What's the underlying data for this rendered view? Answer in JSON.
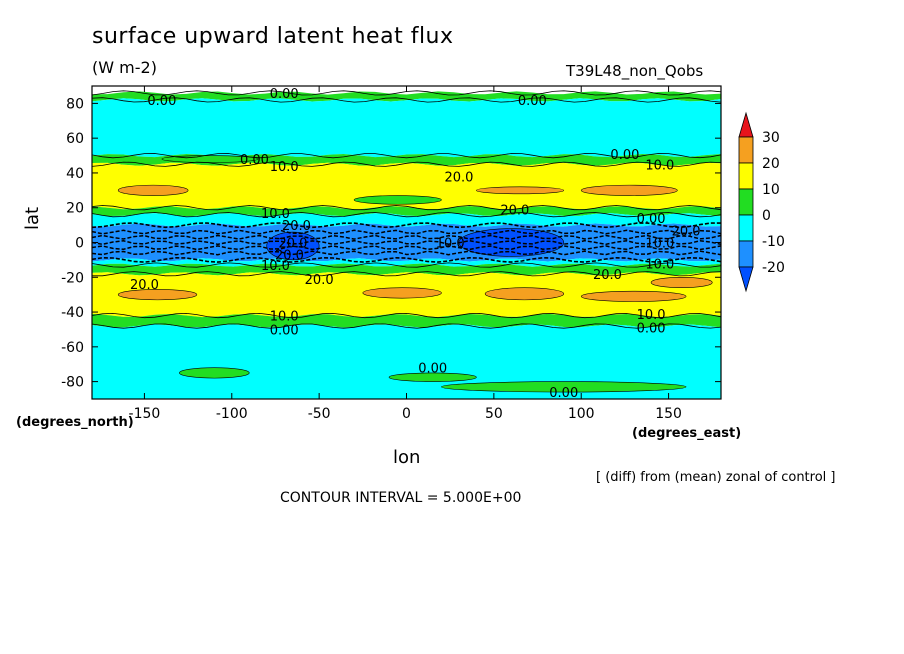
{
  "header": {
    "title": "surface upward latent heat flux",
    "units": "(W m-2)",
    "run_id": "T39L48_non_Qobs"
  },
  "footer": {
    "diff_note": "[ (diff) from (mean) zonal of control ]",
    "contour_interval": "CONTOUR INTERVAL = 5.000E+00"
  },
  "chart_data": {
    "type": "heatmap",
    "title": "surface upward latent heat flux",
    "xlabel": "lon",
    "ylabel": "lat",
    "x_units": "(degrees_east)",
    "y_units": "(degrees_north)",
    "xlim": [
      -180,
      180
    ],
    "ylim": [
      -90,
      90
    ],
    "x_ticks": [
      -150,
      -100,
      -50,
      0,
      50,
      100,
      150
    ],
    "y_ticks": [
      -80,
      -60,
      -40,
      -20,
      0,
      20,
      40,
      60,
      80
    ],
    "colorbar": {
      "levels": [
        30,
        20,
        10,
        0,
        -10,
        -20
      ],
      "bins": [
        {
          "range": "above 30",
          "color": "#e8141c"
        },
        {
          "range": "20 to 30",
          "color": "#f5a020"
        },
        {
          "range": "10 to 20",
          "color": "#ffff00"
        },
        {
          "range": "0 to 10",
          "color": "#22dd22"
        },
        {
          "range": "-10 to 0",
          "color": "#00ffff"
        },
        {
          "range": "-20 to -10",
          "color": "#1e90ff"
        },
        {
          "range": "below -20",
          "color": "#0050ff"
        }
      ]
    },
    "zonal_bands": [
      {
        "lat_from": 90,
        "lat_to": 86,
        "color": "#ffffff"
      },
      {
        "lat_from": 86,
        "lat_to": 82,
        "color": "#22dd22"
      },
      {
        "lat_from": 82,
        "lat_to": 50,
        "color": "#00ffff"
      },
      {
        "lat_from": 50,
        "lat_to": 45,
        "color": "#22dd22"
      },
      {
        "lat_from": 45,
        "lat_to": 20,
        "color": "#ffff00"
      },
      {
        "lat_from": 20,
        "lat_to": 16,
        "color": "#22dd22"
      },
      {
        "lat_from": 16,
        "lat_to": 10,
        "color": "#00ffff"
      },
      {
        "lat_from": 10,
        "lat_to": -10,
        "color": "#1e90ff"
      },
      {
        "lat_from": -10,
        "lat_to": -13,
        "color": "#00ffff"
      },
      {
        "lat_from": -13,
        "lat_to": -18,
        "color": "#22dd22"
      },
      {
        "lat_from": -18,
        "lat_to": -42,
        "color": "#ffff00"
      },
      {
        "lat_from": -42,
        "lat_to": -48,
        "color": "#22dd22"
      },
      {
        "lat_from": -48,
        "lat_to": -90,
        "color": "#00ffff"
      }
    ],
    "patches": [
      {
        "lon": [
          -165,
          -125
        ],
        "lat": [
          33,
          27
        ],
        "color": "#f5a020"
      },
      {
        "lon": [
          40,
          90
        ],
        "lat": [
          32,
          28
        ],
        "color": "#f5a020"
      },
      {
        "lon": [
          100,
          155
        ],
        "lat": [
          33,
          27
        ],
        "color": "#f5a020"
      },
      {
        "lon": [
          -140,
          -85
        ],
        "lat": [
          50,
          46
        ],
        "color": "#22dd22"
      },
      {
        "lon": [
          -30,
          20
        ],
        "lat": [
          27,
          22
        ],
        "color": "#22dd22"
      },
      {
        "lon": [
          -165,
          -120
        ],
        "lat": [
          -27,
          -33
        ],
        "color": "#f5a020"
      },
      {
        "lon": [
          45,
          90
        ],
        "lat": [
          -26,
          -33
        ],
        "color": "#f5a020"
      },
      {
        "lon": [
          100,
          160
        ],
        "lat": [
          -28,
          -34
        ],
        "color": "#f5a020"
      },
      {
        "lon": [
          -25,
          20
        ],
        "lat": [
          -26,
          -32
        ],
        "color": "#f5a020"
      },
      {
        "lon": [
          -10,
          40
        ],
        "lat": [
          -75,
          -80
        ],
        "color": "#22dd22"
      },
      {
        "lon": [
          20,
          160
        ],
        "lat": [
          -80,
          -86
        ],
        "color": "#22dd22"
      },
      {
        "lon": [
          -130,
          -90
        ],
        "lat": [
          -72,
          -78
        ],
        "color": "#22dd22"
      },
      {
        "lon": [
          140,
          175
        ],
        "lat": [
          -20,
          -26
        ],
        "color": "#f5a020"
      },
      {
        "lon": [
          -80,
          -50
        ],
        "lat": [
          6,
          -10
        ],
        "color": "#0050ff"
      },
      {
        "lon": [
          30,
          90
        ],
        "lat": [
          8,
          -8
        ],
        "color": "#0050ff"
      }
    ],
    "contour_labels": [
      {
        "text": "0.00",
        "lon": -70,
        "lat": 86
      },
      {
        "text": "0.00",
        "lon": -140,
        "lat": 82
      },
      {
        "text": "0.00",
        "lon": 72,
        "lat": 82
      },
      {
        "text": "0.00",
        "lon": -87,
        "lat": 48
      },
      {
        "text": "0.00",
        "lon": 125,
        "lat": 51
      },
      {
        "text": "10.0",
        "lon": -70,
        "lat": 44
      },
      {
        "text": "10.0",
        "lon": 145,
        "lat": 45
      },
      {
        "text": "20.0",
        "lon": 30,
        "lat": 38
      },
      {
        "text": "20.0",
        "lon": 62,
        "lat": 19
      },
      {
        "text": "0.00",
        "lon": 140,
        "lat": 14
      },
      {
        "text": "20.0",
        "lon": 160,
        "lat": 7
      },
      {
        "text": "10.0",
        "lon": -75,
        "lat": 17
      },
      {
        "text": "20.0",
        "lon": -63,
        "lat": 10
      },
      {
        "text": "20.0",
        "lon": -65,
        "lat": 0
      },
      {
        "text": "10.0",
        "lon": 25,
        "lat": 0
      },
      {
        "text": "10.0",
        "lon": 145,
        "lat": 0
      },
      {
        "text": "20.0",
        "lon": -67,
        "lat": -7
      },
      {
        "text": "10.0",
        "lon": -75,
        "lat": -13
      },
      {
        "text": "10.0",
        "lon": 145,
        "lat": -12
      },
      {
        "text": "20.0",
        "lon": -50,
        "lat": -21
      },
      {
        "text": "20.0",
        "lon": 115,
        "lat": -18
      },
      {
        "text": "20.0",
        "lon": -150,
        "lat": -24
      },
      {
        "text": "10.0",
        "lon": -70,
        "lat": -42
      },
      {
        "text": "0.00",
        "lon": -70,
        "lat": -50
      },
      {
        "text": "10.0",
        "lon": 140,
        "lat": -41
      },
      {
        "text": "0.00",
        "lon": 140,
        "lat": -49
      },
      {
        "text": "0.00",
        "lon": 15,
        "lat": -72
      },
      {
        "text": "0.00",
        "lon": 90,
        "lat": -86
      }
    ]
  }
}
